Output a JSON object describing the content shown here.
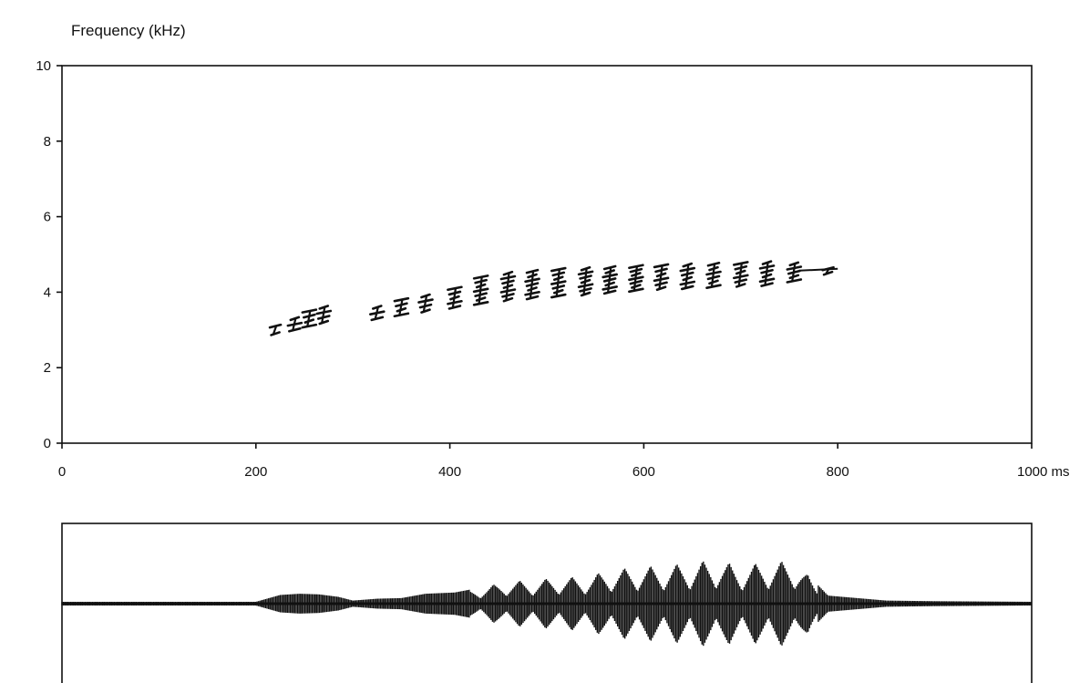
{
  "chart_data": [
    {
      "type": "spectrogram",
      "ylabel": "Frequency (kHz)",
      "xlim": [
        0,
        1000
      ],
      "ylim": [
        0,
        10
      ],
      "y_ticks": [
        0,
        2,
        4,
        6,
        8,
        10
      ],
      "y_tick_labels": [
        "0",
        "2",
        "4",
        "6",
        "8",
        "10"
      ],
      "x_ticks": [
        0,
        200,
        400,
        600,
        800,
        1000
      ],
      "x_tick_labels": [
        "0",
        "200",
        "400",
        "600",
        "800",
        "1000 ms"
      ],
      "grid": false,
      "ink": "#111111",
      "notes": [
        {
          "time_ms": 220,
          "freq_low_khz": 2.9,
          "freq_high_khz": 3.1
        },
        {
          "time_ms": 240,
          "freq_low_khz": 3.0,
          "freq_high_khz": 3.3
        },
        {
          "time_ms": 255,
          "freq_low_khz": 3.1,
          "freq_high_khz": 3.5
        },
        {
          "time_ms": 270,
          "freq_low_khz": 3.2,
          "freq_high_khz": 3.6
        },
        {
          "time_ms": 325,
          "freq_low_khz": 3.3,
          "freq_high_khz": 3.6
        },
        {
          "time_ms": 350,
          "freq_low_khz": 3.4,
          "freq_high_khz": 3.8
        },
        {
          "time_ms": 375,
          "freq_low_khz": 3.5,
          "freq_high_khz": 3.9
        },
        {
          "time_ms": 405,
          "freq_low_khz": 3.6,
          "freq_high_khz": 4.1
        },
        {
          "time_ms": 432,
          "freq_low_khz": 3.7,
          "freq_high_khz": 4.4
        },
        {
          "time_ms": 460,
          "freq_low_khz": 3.8,
          "freq_high_khz": 4.5
        },
        {
          "time_ms": 485,
          "freq_low_khz": 3.85,
          "freq_high_khz": 4.55
        },
        {
          "time_ms": 512,
          "freq_low_khz": 3.9,
          "freq_high_khz": 4.6
        },
        {
          "time_ms": 540,
          "freq_low_khz": 3.95,
          "freq_high_khz": 4.62
        },
        {
          "time_ms": 565,
          "freq_low_khz": 4.0,
          "freq_high_khz": 4.65
        },
        {
          "time_ms": 592,
          "freq_low_khz": 4.05,
          "freq_high_khz": 4.68
        },
        {
          "time_ms": 618,
          "freq_low_khz": 4.1,
          "freq_high_khz": 4.7
        },
        {
          "time_ms": 645,
          "freq_low_khz": 4.12,
          "freq_high_khz": 4.72
        },
        {
          "time_ms": 672,
          "freq_low_khz": 4.15,
          "freq_high_khz": 4.74
        },
        {
          "time_ms": 700,
          "freq_low_khz": 4.18,
          "freq_high_khz": 4.76
        },
        {
          "time_ms": 727,
          "freq_low_khz": 4.2,
          "freq_high_khz": 4.78
        },
        {
          "time_ms": 755,
          "freq_low_khz": 4.3,
          "freq_high_khz": 4.75
        },
        {
          "time_ms": 790,
          "freq_low_khz": 4.5,
          "freq_high_khz": 4.62
        }
      ]
    },
    {
      "type": "waveform",
      "xlim": [
        0,
        1000
      ],
      "ink": "#111111",
      "envelope": [
        {
          "time_ms": 0,
          "amp": 0.03
        },
        {
          "time_ms": 100,
          "amp": 0.03
        },
        {
          "time_ms": 200,
          "amp": 0.03
        },
        {
          "time_ms": 225,
          "amp": 0.14
        },
        {
          "time_ms": 245,
          "amp": 0.16
        },
        {
          "time_ms": 265,
          "amp": 0.15
        },
        {
          "time_ms": 285,
          "amp": 0.11
        },
        {
          "time_ms": 300,
          "amp": 0.05
        },
        {
          "time_ms": 325,
          "amp": 0.08
        },
        {
          "time_ms": 350,
          "amp": 0.09
        },
        {
          "time_ms": 375,
          "amp": 0.16
        },
        {
          "time_ms": 405,
          "amp": 0.18
        },
        {
          "time_ms": 432,
          "amp": 0.26
        },
        {
          "time_ms": 460,
          "amp": 0.37
        },
        {
          "time_ms": 485,
          "amp": 0.38
        },
        {
          "time_ms": 512,
          "amp": 0.43
        },
        {
          "time_ms": 540,
          "amp": 0.44
        },
        {
          "time_ms": 565,
          "amp": 0.55
        },
        {
          "time_ms": 592,
          "amp": 0.6
        },
        {
          "time_ms": 618,
          "amp": 0.62
        },
        {
          "time_ms": 645,
          "amp": 0.66
        },
        {
          "time_ms": 672,
          "amp": 0.72
        },
        {
          "time_ms": 700,
          "amp": 0.62
        },
        {
          "time_ms": 727,
          "amp": 0.68
        },
        {
          "time_ms": 755,
          "amp": 0.7
        },
        {
          "time_ms": 790,
          "amp": 0.13
        },
        {
          "time_ms": 850,
          "amp": 0.05
        },
        {
          "time_ms": 900,
          "amp": 0.04
        },
        {
          "time_ms": 1000,
          "amp": 0.03
        }
      ]
    }
  ]
}
